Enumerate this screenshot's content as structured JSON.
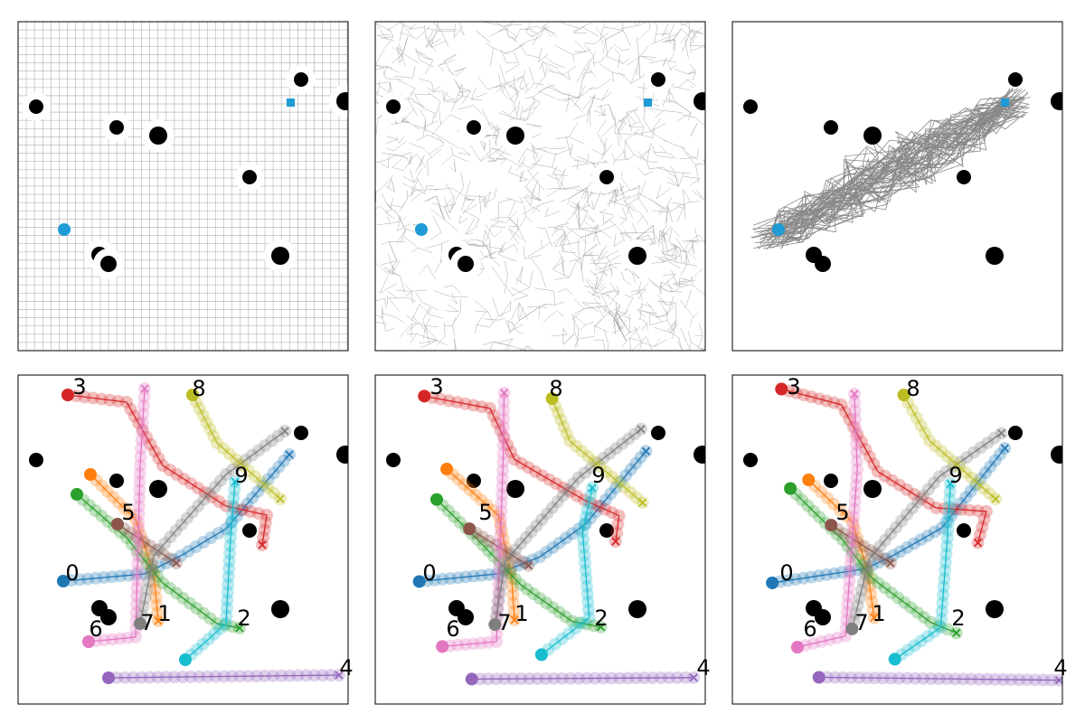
{
  "panels": [
    {
      "agent_labels": [
        "0",
        "1",
        "2",
        "3",
        "4",
        "5",
        "6",
        "7",
        "8",
        "9"
      ]
    },
    {
      "agent_labels": [
        "0",
        "1",
        "2",
        "3",
        "4",
        "5",
        "6",
        "7",
        "8",
        "9"
      ]
    },
    {
      "agent_labels": [
        "0",
        "1",
        "2",
        "3",
        "4",
        "5",
        "6",
        "7",
        "8",
        "9"
      ]
    }
  ]
}
